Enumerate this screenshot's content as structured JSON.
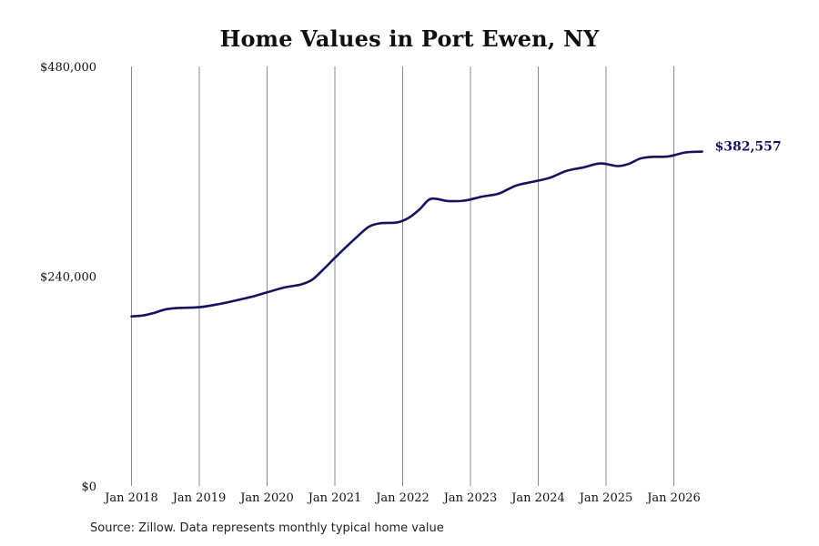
{
  "chart_data": {
    "type": "line",
    "title": "Home Values in Port Ewen, NY",
    "source": "Source: Zillow. Data represents monthly typical home value",
    "end_label": "$382,557",
    "ylim": [
      0,
      480000
    ],
    "yticks": [
      {
        "value": 0,
        "label": "$0"
      },
      {
        "value": 240000,
        "label": "$240,000"
      },
      {
        "value": 480000,
        "label": "$480,000"
      }
    ],
    "xticks": [
      {
        "value": "2018-01",
        "label": "Jan 2018"
      },
      {
        "value": "2019-01",
        "label": "Jan 2019"
      },
      {
        "value": "2020-01",
        "label": "Jan 2020"
      },
      {
        "value": "2021-01",
        "label": "Jan 2021"
      },
      {
        "value": "2022-01",
        "label": "Jan 2022"
      },
      {
        "value": "2023-01",
        "label": "Jan 2023"
      },
      {
        "value": "2024-01",
        "label": "Jan 2024"
      },
      {
        "value": "2025-01",
        "label": "Jan 2025"
      },
      {
        "value": "2026-01",
        "label": "Jan 2026"
      }
    ],
    "grid": "vertical",
    "line_color": "#14145e",
    "series": [
      {
        "points": [
          {
            "x": "2018-01",
            "y": 194000
          },
          {
            "x": "2018-03",
            "y": 195000
          },
          {
            "x": "2018-05",
            "y": 198000
          },
          {
            "x": "2018-07",
            "y": 202000
          },
          {
            "x": "2018-09",
            "y": 203500
          },
          {
            "x": "2019-01",
            "y": 204500
          },
          {
            "x": "2019-04",
            "y": 207500
          },
          {
            "x": "2019-07",
            "y": 211500
          },
          {
            "x": "2019-10",
            "y": 216000
          },
          {
            "x": "2020-01",
            "y": 221500
          },
          {
            "x": "2020-04",
            "y": 227000
          },
          {
            "x": "2020-07",
            "y": 230500
          },
          {
            "x": "2020-09",
            "y": 236000
          },
          {
            "x": "2020-11",
            "y": 248000
          },
          {
            "x": "2021-01",
            "y": 261000
          },
          {
            "x": "2021-03",
            "y": 273500
          },
          {
            "x": "2021-05",
            "y": 285500
          },
          {
            "x": "2021-07",
            "y": 296500
          },
          {
            "x": "2021-09",
            "y": 300500
          },
          {
            "x": "2021-12",
            "y": 301500
          },
          {
            "x": "2022-02",
            "y": 306500
          },
          {
            "x": "2022-04",
            "y": 316500
          },
          {
            "x": "2022-06",
            "y": 328500
          },
          {
            "x": "2022-09",
            "y": 326000
          },
          {
            "x": "2022-12",
            "y": 326500
          },
          {
            "x": "2023-03",
            "y": 331000
          },
          {
            "x": "2023-06",
            "y": 334500
          },
          {
            "x": "2023-09",
            "y": 343500
          },
          {
            "x": "2023-12",
            "y": 348000
          },
          {
            "x": "2024-03",
            "y": 352500
          },
          {
            "x": "2024-06",
            "y": 360500
          },
          {
            "x": "2024-09",
            "y": 364500
          },
          {
            "x": "2024-12",
            "y": 369000
          },
          {
            "x": "2025-03",
            "y": 366000
          },
          {
            "x": "2025-05",
            "y": 368500
          },
          {
            "x": "2025-07",
            "y": 374500
          },
          {
            "x": "2025-09",
            "y": 376500
          },
          {
            "x": "2025-12",
            "y": 377000
          },
          {
            "x": "2026-03",
            "y": 381500
          },
          {
            "x": "2026-06",
            "y": 382557
          }
        ]
      }
    ]
  }
}
